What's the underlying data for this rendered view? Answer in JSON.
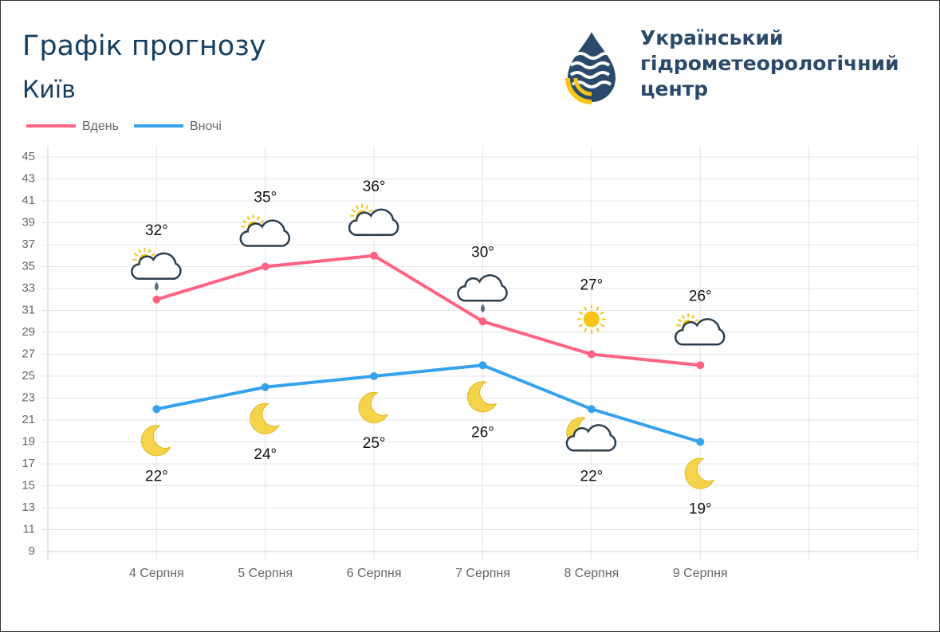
{
  "header": {
    "title": "Графік прогнозу",
    "subtitle": "Київ",
    "logo_lines": [
      "Український",
      "гідрометеорологічний",
      "центр"
    ]
  },
  "chart_data": {
    "type": "line",
    "categories": [
      null,
      "4 Серпня",
      "5 Серпня",
      "6 Серпня",
      "7 Серпня",
      "8 Серпня",
      "9 Серпня",
      null,
      null
    ],
    "series": [
      {
        "name": "Вдень",
        "color": "#ff6384",
        "values": [
          null,
          32,
          35,
          36,
          30,
          27,
          26,
          null,
          null
        ],
        "value_labels": [
          null,
          "32°",
          "35°",
          "36°",
          "30°",
          "27°",
          "26°",
          null,
          null
        ]
      },
      {
        "name": "Вночі",
        "color": "#36a2eb",
        "values": [
          null,
          22,
          24,
          25,
          26,
          22,
          19,
          null,
          null
        ],
        "value_labels": [
          null,
          "22°",
          "24°",
          "25°",
          "26°",
          "22°",
          "19°",
          null,
          null
        ]
      }
    ],
    "ylim": [
      9,
      45
    ],
    "yticks": [
      9,
      11,
      13,
      15,
      17,
      19,
      21,
      23,
      25,
      27,
      29,
      31,
      33,
      35,
      37,
      39,
      41,
      43,
      45
    ],
    "grid": true,
    "legend": "top-left"
  }
}
